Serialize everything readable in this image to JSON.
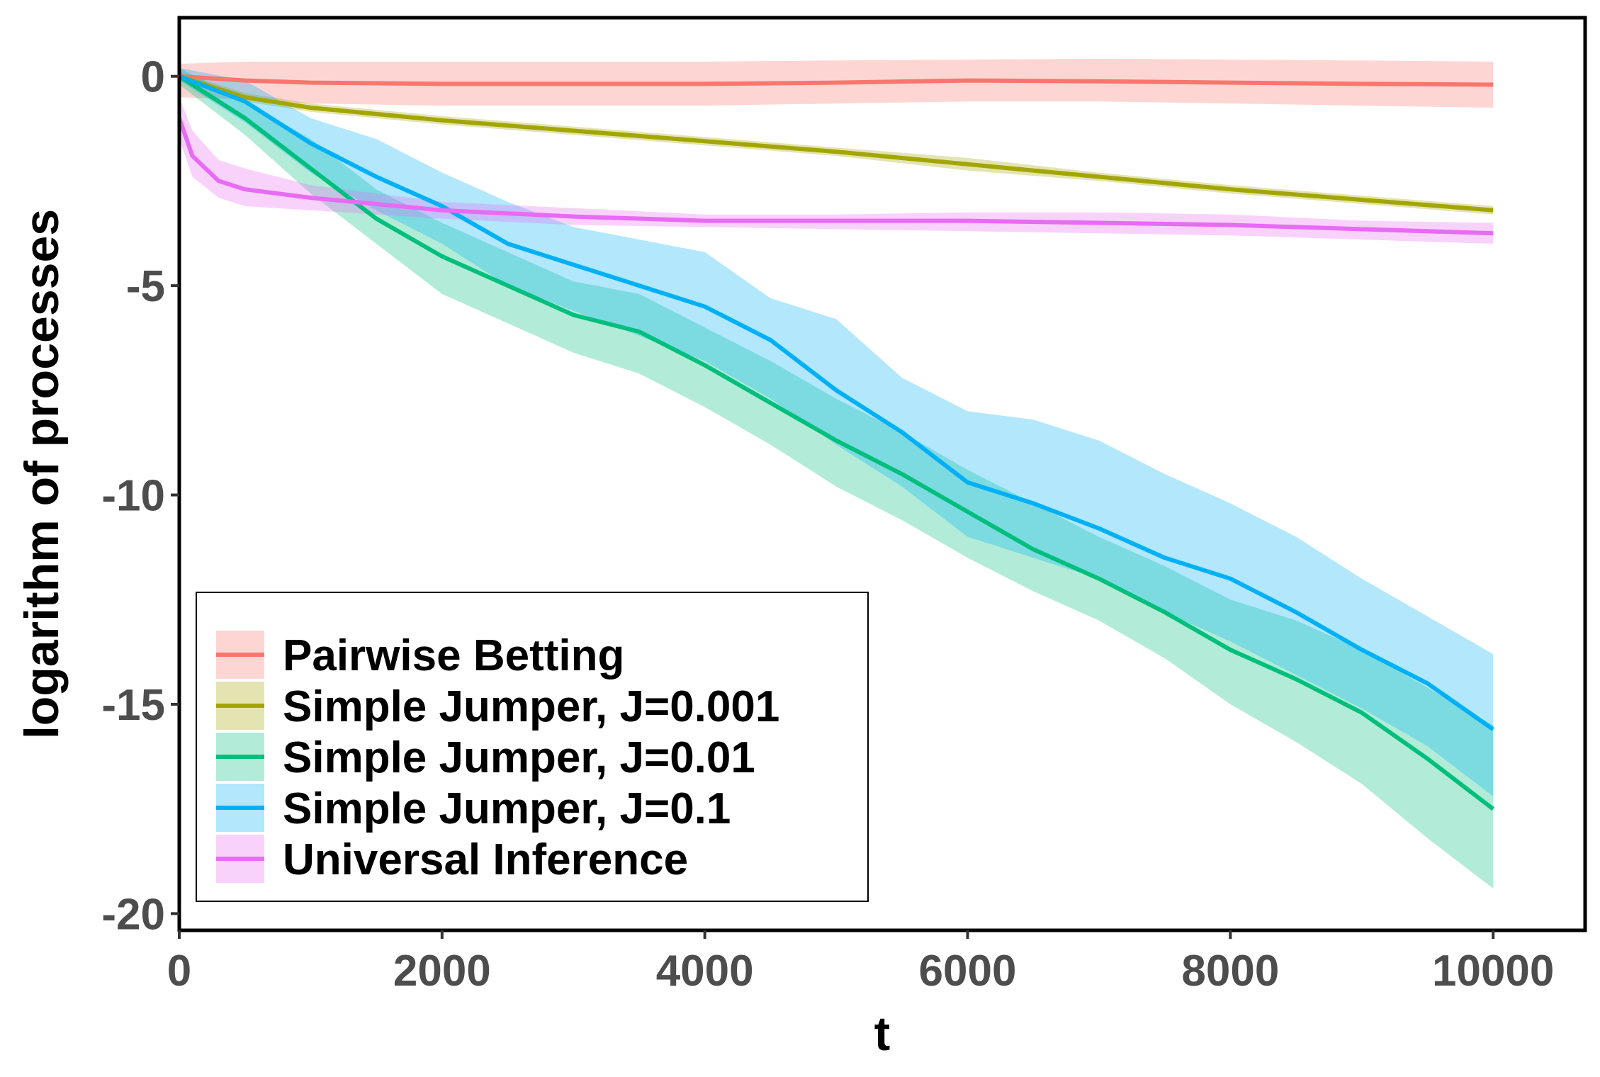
{
  "chart_data": {
    "type": "line",
    "xlabel": "t",
    "ylabel": "logarithm of processes",
    "xlim": [
      0,
      10700
    ],
    "ylim": [
      -20.4,
      1.4
    ],
    "x_ticks": [
      0,
      2000,
      4000,
      6000,
      8000,
      10000
    ],
    "x_tick_labels": [
      "0",
      "2000",
      "4000",
      "6000",
      "8000",
      "10000"
    ],
    "y_ticks": [
      0,
      -5,
      -10,
      -15,
      -20
    ],
    "y_tick_labels": [
      "0",
      "-5",
      "-10",
      "-15",
      "-20"
    ],
    "grid": false,
    "legend_position": "bottom-left",
    "series": [
      {
        "name": "Pairwise Betting",
        "color": "#F8766D",
        "x": [
          0,
          500,
          1000,
          2000,
          3000,
          4000,
          5000,
          6000,
          7000,
          8000,
          9000,
          10000
        ],
        "y": [
          0,
          -0.1,
          -0.15,
          -0.18,
          -0.18,
          -0.18,
          -0.15,
          -0.1,
          -0.12,
          -0.15,
          -0.18,
          -0.2
        ],
        "lower": [
          -0.5,
          -0.55,
          -0.65,
          -0.7,
          -0.7,
          -0.7,
          -0.65,
          -0.6,
          -0.6,
          -0.65,
          -0.7,
          -0.75
        ],
        "upper": [
          0.3,
          0.35,
          0.35,
          0.35,
          0.35,
          0.35,
          0.38,
          0.4,
          0.42,
          0.4,
          0.38,
          0.35
        ]
      },
      {
        "name": "Simple Jumper, J=0.001",
        "color": "#A3A500",
        "x": [
          0,
          500,
          1000,
          2000,
          3000,
          4000,
          5000,
          6000,
          7000,
          8000,
          9000,
          10000
        ],
        "y": [
          0,
          -0.5,
          -0.75,
          -1.05,
          -1.3,
          -1.55,
          -1.8,
          -2.1,
          -2.4,
          -2.7,
          -2.95,
          -3.2
        ],
        "lower": [
          -0.1,
          -0.6,
          -0.85,
          -1.15,
          -1.4,
          -1.65,
          -1.9,
          -2.25,
          -2.5,
          -2.8,
          -3.05,
          -3.3
        ],
        "upper": [
          0.1,
          -0.4,
          -0.65,
          -0.95,
          -1.2,
          -1.45,
          -1.7,
          -1.95,
          -2.3,
          -2.6,
          -2.85,
          -3.1
        ]
      },
      {
        "name": "Simple Jumper, J=0.01",
        "color": "#00BF7D",
        "x": [
          0,
          500,
          1000,
          1500,
          2000,
          2500,
          3000,
          3500,
          4000,
          4500,
          5000,
          5500,
          6000,
          6500,
          7000,
          7500,
          8000,
          8500,
          9000,
          9500,
          10000
        ],
        "y": [
          0,
          -1.0,
          -2.2,
          -3.4,
          -4.3,
          -5.0,
          -5.7,
          -6.1,
          -6.9,
          -7.8,
          -8.7,
          -9.5,
          -10.4,
          -11.3,
          -12.0,
          -12.8,
          -13.7,
          -14.4,
          -15.2,
          -16.3,
          -17.5
        ],
        "lower": [
          -0.2,
          -1.4,
          -2.8,
          -4.0,
          -5.2,
          -5.9,
          -6.6,
          -7.1,
          -7.9,
          -8.8,
          -9.8,
          -10.6,
          -11.5,
          -12.3,
          -13.0,
          -13.9,
          -15.0,
          -15.9,
          -16.9,
          -18.2,
          -19.4
        ],
        "upper": [
          0.2,
          -0.6,
          -1.5,
          -2.7,
          -3.5,
          -4.2,
          -4.9,
          -5.2,
          -6.0,
          -6.8,
          -7.7,
          -8.5,
          -9.4,
          -10.2,
          -11.0,
          -11.7,
          -12.5,
          -13.0,
          -13.7,
          -14.6,
          -15.5
        ]
      },
      {
        "name": "Simple Jumper, J=0.1",
        "color": "#00B0F6",
        "x": [
          0,
          500,
          1000,
          1500,
          2000,
          2500,
          3000,
          3500,
          4000,
          4500,
          5000,
          5500,
          6000,
          6500,
          7000,
          7500,
          8000,
          8500,
          9000,
          9500,
          10000
        ],
        "y": [
          0,
          -0.6,
          -1.6,
          -2.4,
          -3.1,
          -4.0,
          -4.5,
          -5.0,
          -5.5,
          -6.3,
          -7.5,
          -8.5,
          -9.7,
          -10.2,
          -10.8,
          -11.5,
          -12.0,
          -12.8,
          -13.7,
          -14.5,
          -15.6
        ],
        "lower": [
          -0.1,
          -1.1,
          -2.3,
          -3.2,
          -4.0,
          -5.0,
          -5.6,
          -6.2,
          -6.8,
          -7.7,
          -8.8,
          -9.8,
          -11.0,
          -11.5,
          -12.0,
          -12.8,
          -13.5,
          -14.3,
          -15.1,
          -16.0,
          -17.2
        ],
        "upper": [
          0.2,
          -0.1,
          -1.0,
          -1.5,
          -2.3,
          -3.0,
          -3.6,
          -3.9,
          -4.2,
          -5.3,
          -5.8,
          -7.2,
          -8.0,
          -8.2,
          -8.7,
          -9.5,
          -10.2,
          -11.0,
          -12.0,
          -12.9,
          -13.8
        ]
      },
      {
        "name": "Universal Inference",
        "color": "#E76BF3",
        "x": [
          0,
          100,
          300,
          500,
          1000,
          2000,
          3000,
          4000,
          5000,
          6000,
          7000,
          8000,
          9000,
          10000
        ],
        "y": [
          -1.0,
          -1.9,
          -2.5,
          -2.7,
          -2.9,
          -3.2,
          -3.35,
          -3.45,
          -3.45,
          -3.45,
          -3.5,
          -3.55,
          -3.65,
          -3.75
        ],
        "lower": [
          -1.5,
          -2.4,
          -2.9,
          -3.1,
          -3.2,
          -3.4,
          -3.55,
          -3.6,
          -3.65,
          -3.7,
          -3.75,
          -3.8,
          -3.9,
          -4.0
        ],
        "upper": [
          -0.5,
          -1.3,
          -2.0,
          -2.2,
          -2.6,
          -3.0,
          -3.15,
          -3.3,
          -3.3,
          -3.25,
          -3.25,
          -3.3,
          -3.45,
          -3.5
        ]
      }
    ]
  },
  "legend_band_opacity": 0.3
}
